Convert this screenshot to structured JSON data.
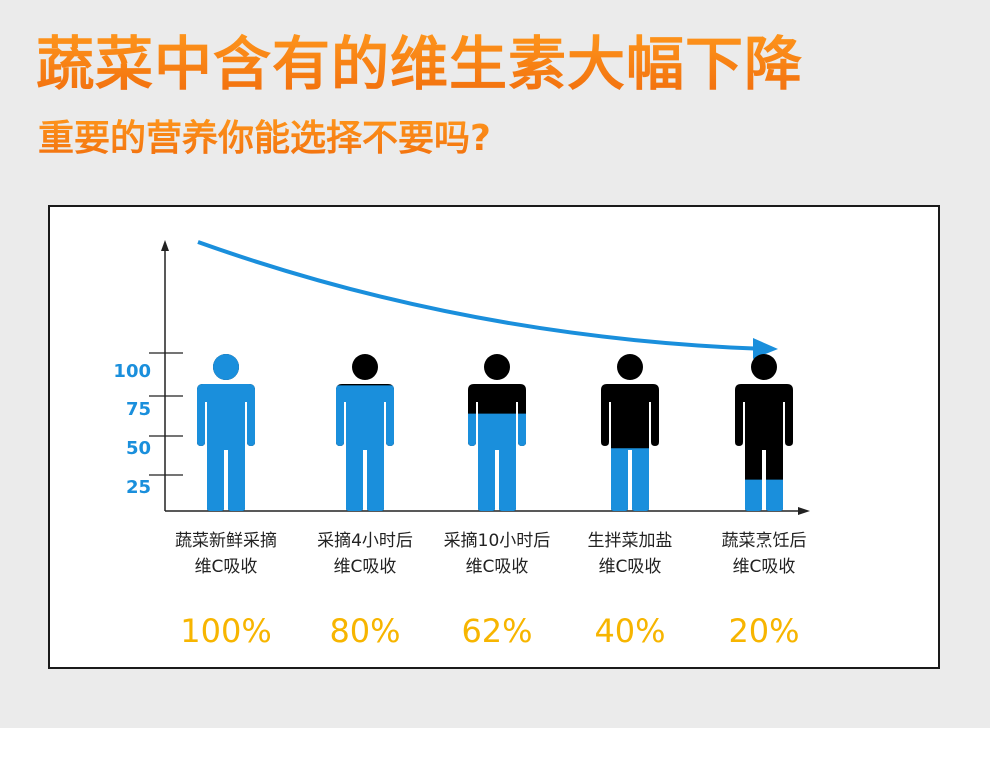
{
  "title": "蔬菜中含有的维生素大幅下降",
  "subtitle": "重要的营养你能选择不要吗?",
  "chart_data": {
    "type": "bar",
    "style": "pictogram",
    "categories": [
      [
        "蔬菜新鲜采摘",
        "维C吸收"
      ],
      [
        "采摘4小时后",
        "维C吸收"
      ],
      [
        "采摘10小时后",
        "维C吸收"
      ],
      [
        "生拌菜加盐",
        "维C吸收"
      ],
      [
        "蔬菜烹饪后",
        "维C吸收"
      ]
    ],
    "values": [
      100,
      80,
      62,
      40,
      20
    ],
    "value_labels": [
      "100%",
      "80%",
      "62%",
      "40%",
      "20%"
    ],
    "yticks": [
      25,
      50,
      75,
      100
    ],
    "ylim": [
      0,
      100
    ],
    "fill_color": "#1a8fdc",
    "empty_color": "#000000",
    "value_color": "#f7b500",
    "axis_tick_color": "#1a8fdc",
    "trend_arrow_color": "#1a8fdc"
  }
}
